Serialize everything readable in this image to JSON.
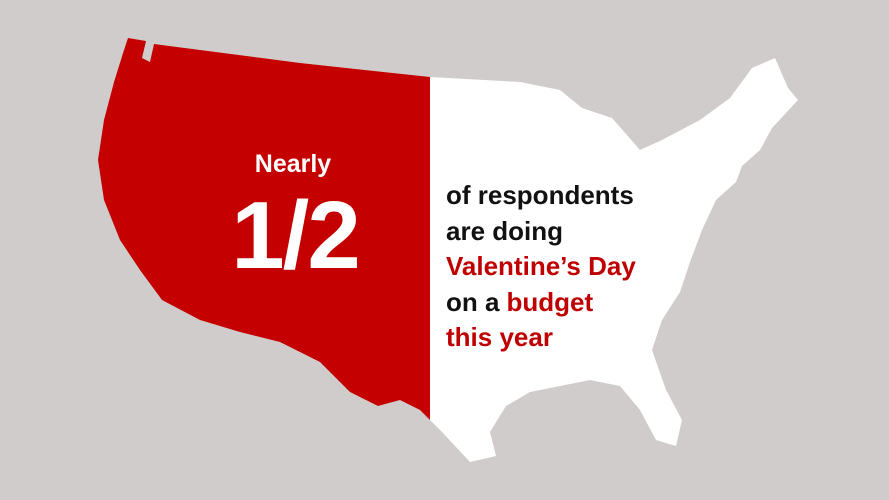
{
  "headline": {
    "lead": "Nearly",
    "figure": "1/2"
  },
  "statement": {
    "lines": [
      [
        {
          "text": "of respondents",
          "color": "#111111"
        }
      ],
      [
        {
          "text": "are doing",
          "color": "#111111"
        }
      ],
      [
        {
          "text": "Valentine’s Day",
          "color": "#c00000"
        }
      ],
      [
        {
          "text": "on a",
          "color": "#111111"
        },
        {
          "text": "budget",
          "color": "#c00000"
        }
      ],
      [
        {
          "text": "this year",
          "color": "#c00000"
        }
      ]
    ]
  }
}
